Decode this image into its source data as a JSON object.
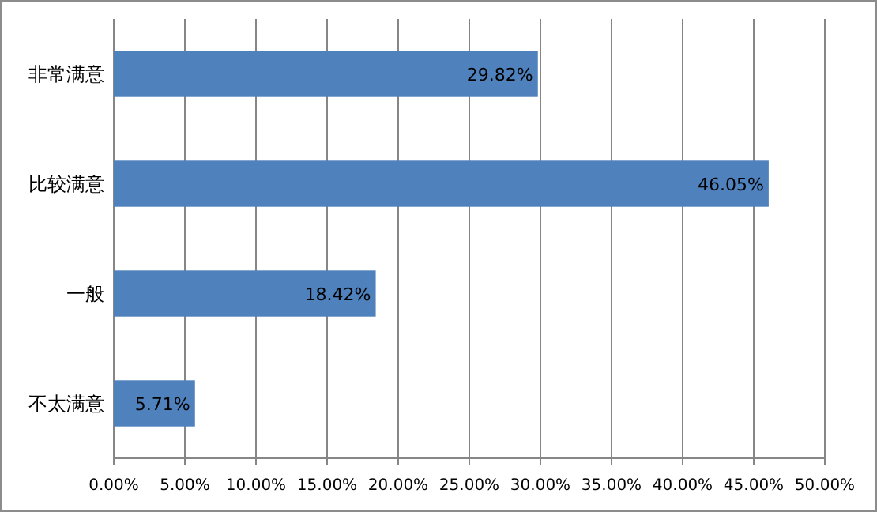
{
  "chart_data": {
    "type": "bar",
    "orientation": "horizontal",
    "categories": [
      "非常满意",
      "比较满意",
      "一般",
      "不太满意"
    ],
    "values": [
      29.82,
      46.05,
      18.42,
      5.71
    ],
    "value_labels": [
      "29.82%",
      "46.05%",
      "18.42%",
      "5.71%"
    ],
    "color": "#4f81bd",
    "xlim": [
      0,
      50
    ],
    "xticks": [
      {
        "value": 0,
        "label": "0.00%"
      },
      {
        "value": 5,
        "label": "5.00%"
      },
      {
        "value": 10,
        "label": "10.00%"
      },
      {
        "value": 15,
        "label": "15.00%"
      },
      {
        "value": 20,
        "label": "20.00%"
      },
      {
        "value": 25,
        "label": "25.00%"
      },
      {
        "value": 30,
        "label": "30.00%"
      },
      {
        "value": 35,
        "label": "35.00%"
      },
      {
        "value": 40,
        "label": "40.00%"
      },
      {
        "value": 45,
        "label": "45.00%"
      },
      {
        "value": 50,
        "label": "50.00%"
      }
    ],
    "grid": "x"
  }
}
